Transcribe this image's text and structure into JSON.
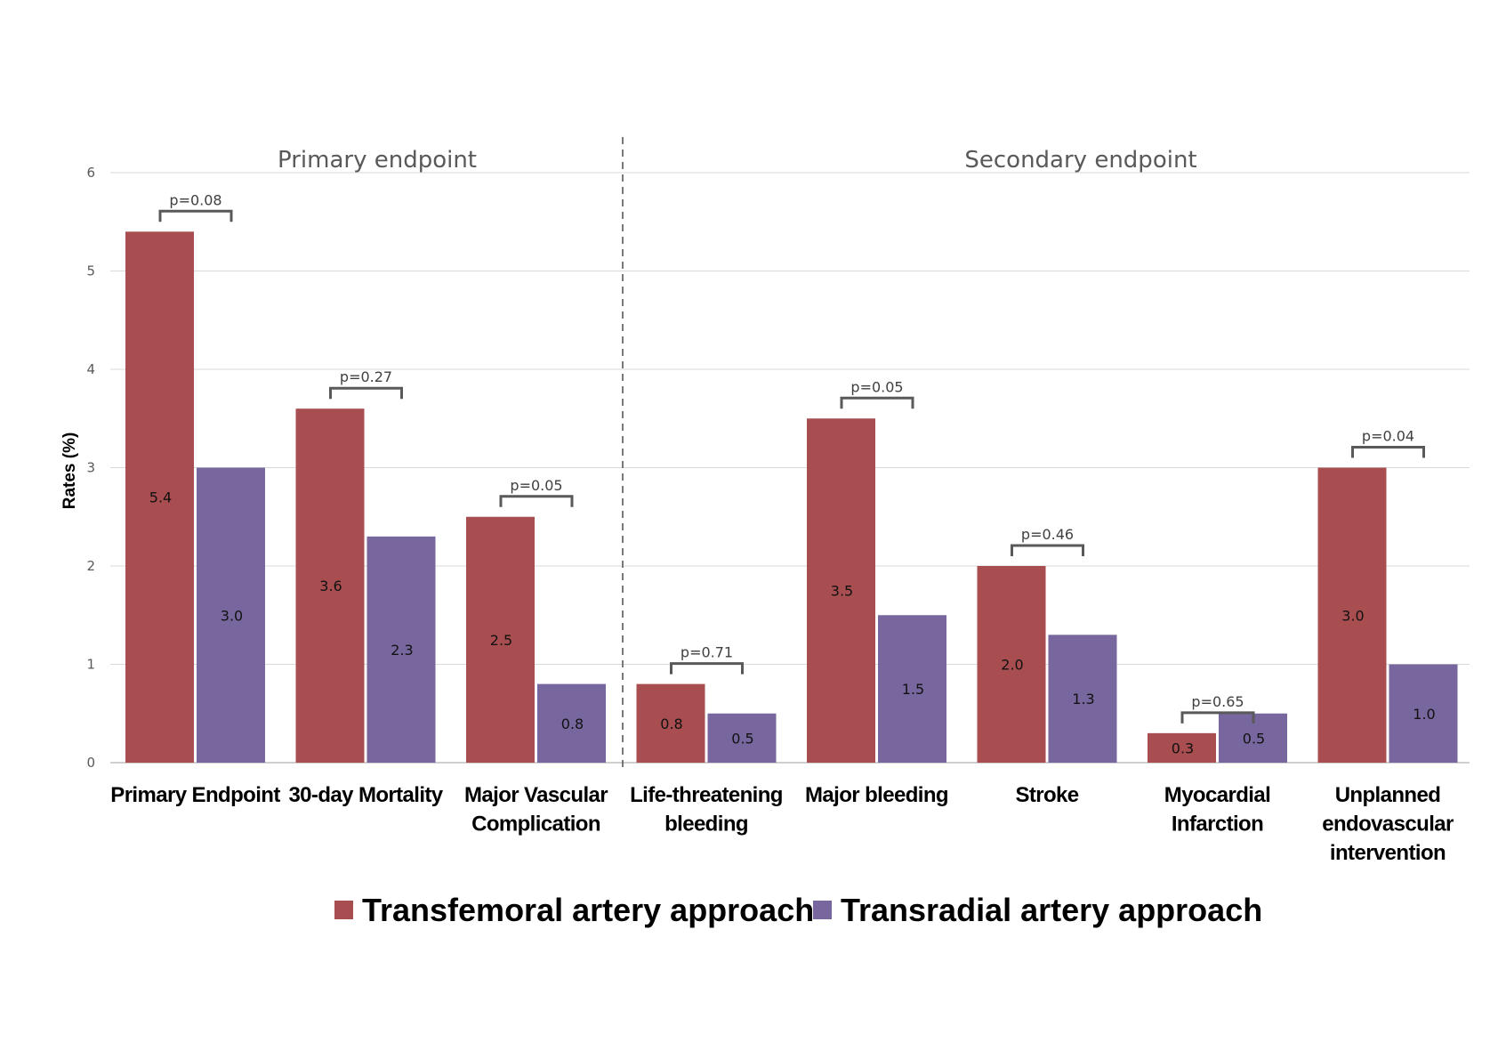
{
  "chart_data": {
    "type": "bar",
    "ylabel": "Rates (%)",
    "xlabel": "",
    "ylim": [
      0,
      6
    ],
    "yticks": [
      "0",
      "1",
      "2",
      "3",
      "4",
      "5",
      "6"
    ],
    "grid": true,
    "legend_position": "bottom",
    "sections": [
      {
        "label": "Primary endpoint",
        "categories": [
          0,
          1,
          2
        ]
      },
      {
        "label": "Secondary endpoint",
        "categories": [
          3,
          4,
          5,
          6,
          7
        ]
      }
    ],
    "categories": [
      [
        "Primary Endpoint"
      ],
      [
        "30-day Mortality"
      ],
      [
        "Major Vascular",
        "Complication"
      ],
      [
        "Life-threatening",
        "bleeding"
      ],
      [
        "Major bleeding"
      ],
      [
        "Stroke"
      ],
      [
        "Myocardial",
        "Infarction"
      ],
      [
        "Unplanned",
        "endovascular",
        "intervention"
      ]
    ],
    "series": [
      {
        "name": "Transfemoral artery approach",
        "color": "#A84E50",
        "values": [
          5.4,
          3.6,
          2.5,
          0.8,
          3.5,
          2.0,
          0.3,
          3.0
        ],
        "labels": [
          "5.4",
          "3.6",
          "2.5",
          "0.8",
          "3.5",
          "2.0",
          "0.3",
          "3.0"
        ]
      },
      {
        "name": "Transradial artery approach",
        "color": "#77679E",
        "values": [
          3.0,
          2.3,
          0.8,
          0.5,
          1.5,
          1.3,
          0.5,
          1.0
        ],
        "labels": [
          "3.0",
          "2.3",
          "0.8",
          "0.5",
          "1.5",
          "1.3",
          "0.5",
          "1.0"
        ]
      }
    ],
    "p_values": [
      "p=0.08",
      "p=0.27",
      "p=0.05",
      "p=0.71",
      "p=0.05",
      "p=0.46",
      "p=0.65",
      "p=0.04"
    ]
  }
}
